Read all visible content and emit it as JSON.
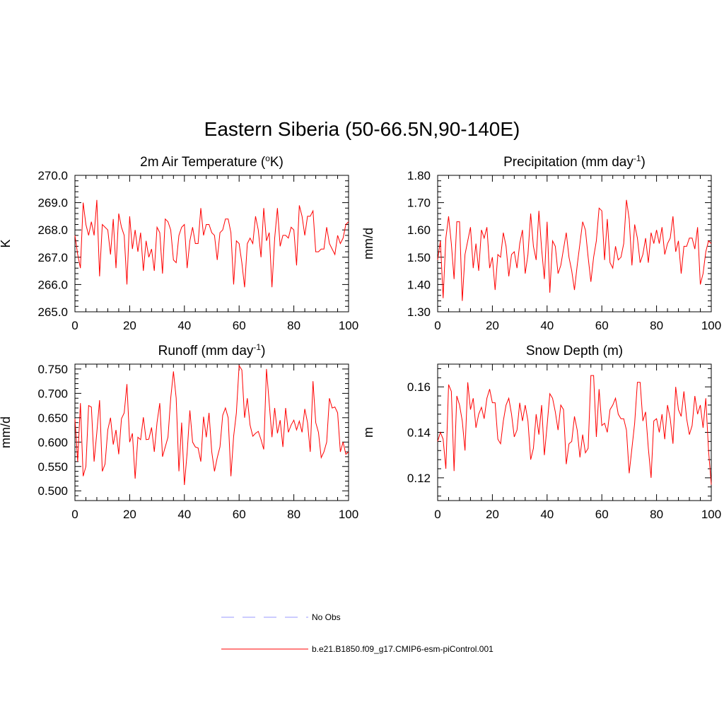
{
  "figure": {
    "title": "Eastern Siberia (50-66.5N,90-140E)"
  },
  "chart_data": [
    {
      "type": "line",
      "title": "2m Air Temperature (",
      "title_sup": "o",
      "title_after": "K)",
      "xlabel": "",
      "ylabel": "K",
      "xlim": [
        0,
        100
      ],
      "ylim": [
        265.0,
        270.0
      ],
      "xticks": [
        0,
        20,
        40,
        60,
        80,
        100
      ],
      "yticks": [
        "265.0",
        "266.0",
        "267.0",
        "268.0",
        "269.0",
        "270.0"
      ],
      "grid": false,
      "series": [
        {
          "color": "#ff0000",
          "x": [
            0,
            1,
            2,
            3,
            4,
            5,
            6,
            7,
            8,
            9,
            10,
            11,
            12,
            13,
            14,
            15,
            16,
            17,
            18,
            19,
            20,
            21,
            22,
            23,
            24,
            25,
            26,
            27,
            28,
            29,
            30,
            31,
            32,
            33,
            34,
            35,
            36,
            37,
            38,
            39,
            40,
            41,
            42,
            43,
            44,
            45,
            46,
            47,
            48,
            49,
            50,
            51,
            52,
            53,
            54,
            55,
            56,
            57,
            58,
            59,
            60,
            61,
            62,
            63,
            64,
            65,
            66,
            67,
            68,
            69,
            70,
            71,
            72,
            73,
            74,
            75,
            76,
            77,
            78,
            79,
            80,
            81,
            82,
            83,
            84,
            85,
            86,
            87,
            88,
            89,
            90,
            91,
            92,
            93,
            94,
            95,
            96,
            97,
            98,
            99,
            100
          ],
          "y": [
            267.8,
            267.1,
            266.6,
            269.0,
            268.2,
            267.8,
            268.3,
            267.8,
            269.1,
            266.3,
            268.2,
            268.1,
            268.0,
            267.1,
            268.4,
            266.6,
            268.6,
            268.1,
            267.8,
            266.0,
            268.5,
            267.3,
            268.0,
            267.2,
            267.9,
            266.5,
            267.6,
            267.0,
            267.3,
            266.5,
            268.1,
            267.9,
            266.4,
            268.4,
            268.3,
            268.0,
            266.9,
            266.8,
            267.8,
            268.1,
            268.2,
            266.6,
            267.6,
            268.1,
            267.5,
            267.5,
            268.8,
            267.8,
            268.2,
            268.2,
            267.9,
            267.8,
            266.9,
            267.9,
            268.0,
            268.4,
            268.4,
            267.9,
            266.0,
            267.6,
            267.5,
            266.8,
            265.9,
            267.5,
            267.7,
            267.5,
            268.5,
            268.0,
            267.0,
            268.8,
            267.6,
            267.9,
            265.9,
            267.7,
            268.8,
            267.4,
            267.8,
            267.8,
            267.7,
            268.1,
            268.0,
            266.7,
            268.9,
            268.5,
            267.8,
            268.5,
            268.5,
            268.7,
            267.2,
            267.2,
            267.3,
            267.3,
            268.1,
            267.5,
            267.3,
            267.1,
            267.8,
            267.5,
            267.7,
            268.2,
            268.3
          ]
        }
      ]
    },
    {
      "type": "line",
      "title": "Precipitation (mm day",
      "title_sup": "-1",
      "title_after": ")",
      "xlabel": "",
      "ylabel": "mm/d",
      "xlim": [
        0,
        100
      ],
      "ylim": [
        1.3,
        1.8
      ],
      "xticks": [
        0,
        20,
        40,
        60,
        80,
        100
      ],
      "yticks": [
        "1.30",
        "1.40",
        "1.50",
        "1.60",
        "1.70",
        "1.80"
      ],
      "grid": false,
      "series": [
        {
          "color": "#ff0000",
          "x": [
            0,
            1,
            2,
            3,
            4,
            5,
            6,
            7,
            8,
            9,
            10,
            11,
            12,
            13,
            14,
            15,
            16,
            17,
            18,
            19,
            20,
            21,
            22,
            23,
            24,
            25,
            26,
            27,
            28,
            29,
            30,
            31,
            32,
            33,
            34,
            35,
            36,
            37,
            38,
            39,
            40,
            41,
            42,
            43,
            44,
            45,
            46,
            47,
            48,
            49,
            50,
            51,
            52,
            53,
            54,
            55,
            56,
            57,
            58,
            59,
            60,
            61,
            62,
            63,
            64,
            65,
            66,
            67,
            68,
            69,
            70,
            71,
            72,
            73,
            74,
            75,
            76,
            77,
            78,
            79,
            80,
            81,
            82,
            83,
            84,
            85,
            86,
            87,
            88,
            89,
            90,
            91,
            92,
            93,
            94,
            95,
            96,
            97,
            98,
            99,
            100
          ],
          "y": [
            1.49,
            1.56,
            1.35,
            1.57,
            1.65,
            1.55,
            1.42,
            1.63,
            1.63,
            1.34,
            1.51,
            1.56,
            1.61,
            1.46,
            1.55,
            1.45,
            1.6,
            1.57,
            1.61,
            1.46,
            1.5,
            1.38,
            1.51,
            1.5,
            1.59,
            1.54,
            1.43,
            1.51,
            1.52,
            1.46,
            1.55,
            1.6,
            1.44,
            1.51,
            1.66,
            1.54,
            1.49,
            1.67,
            1.53,
            1.42,
            1.63,
            1.37,
            1.56,
            1.54,
            1.44,
            1.47,
            1.53,
            1.59,
            1.5,
            1.45,
            1.38,
            1.47,
            1.55,
            1.63,
            1.6,
            1.5,
            1.41,
            1.5,
            1.56,
            1.68,
            1.67,
            1.49,
            1.64,
            1.48,
            1.46,
            1.54,
            1.49,
            1.5,
            1.55,
            1.71,
            1.64,
            1.47,
            1.62,
            1.57,
            1.48,
            1.51,
            1.57,
            1.48,
            1.59,
            1.55,
            1.6,
            1.55,
            1.61,
            1.51,
            1.55,
            1.57,
            1.65,
            1.52,
            1.56,
            1.44,
            1.54,
            1.54,
            1.57,
            1.57,
            1.53,
            1.61,
            1.4,
            1.44,
            1.52,
            1.56,
            1.55
          ]
        }
      ]
    },
    {
      "type": "line",
      "title": "Runoff (mm day",
      "title_sup": "-1",
      "title_after": ")",
      "xlabel": "",
      "ylabel": "mm/d",
      "xlim": [
        0,
        100
      ],
      "ylim": [
        0.48,
        0.76
      ],
      "xticks": [
        0,
        20,
        40,
        60,
        80,
        100
      ],
      "yticks": [
        "0.500",
        "0.550",
        "0.600",
        "0.650",
        "0.700",
        "0.750"
      ],
      "grid": false,
      "series": [
        {
          "color": "#ff0000",
          "x": [
            0,
            1,
            2,
            3,
            4,
            5,
            6,
            7,
            8,
            9,
            10,
            11,
            12,
            13,
            14,
            15,
            16,
            17,
            18,
            19,
            20,
            21,
            22,
            23,
            24,
            25,
            26,
            27,
            28,
            29,
            30,
            31,
            32,
            33,
            34,
            35,
            36,
            37,
            38,
            39,
            40,
            41,
            42,
            43,
            44,
            45,
            46,
            47,
            48,
            49,
            50,
            51,
            52,
            53,
            54,
            55,
            56,
            57,
            58,
            59,
            60,
            61,
            62,
            63,
            64,
            65,
            66,
            67,
            68,
            69,
            70,
            71,
            72,
            73,
            74,
            75,
            76,
            77,
            78,
            79,
            80,
            81,
            82,
            83,
            84,
            85,
            86,
            87,
            88,
            89,
            90,
            91,
            92,
            93,
            94,
            95,
            96,
            97,
            98,
            99,
            100
          ],
          "y": [
            0.648,
            0.56,
            0.68,
            0.53,
            0.55,
            0.675,
            0.672,
            0.56,
            0.62,
            0.686,
            0.54,
            0.555,
            0.625,
            0.65,
            0.595,
            0.625,
            0.575,
            0.648,
            0.66,
            0.719,
            0.6,
            0.618,
            0.525,
            0.61,
            0.605,
            0.651,
            0.605,
            0.606,
            0.63,
            0.58,
            0.64,
            0.68,
            0.57,
            0.59,
            0.61,
            0.69,
            0.745,
            0.69,
            0.54,
            0.64,
            0.512,
            0.578,
            0.665,
            0.6,
            0.59,
            0.588,
            0.56,
            0.652,
            0.61,
            0.66,
            0.58,
            0.54,
            0.568,
            0.59,
            0.655,
            0.67,
            0.65,
            0.53,
            0.612,
            0.66,
            0.757,
            0.748,
            0.65,
            0.69,
            0.635,
            0.612,
            0.618,
            0.622,
            0.605,
            0.585,
            0.75,
            0.68,
            0.61,
            0.67,
            0.618,
            0.645,
            0.59,
            0.67,
            0.62,
            0.635,
            0.645,
            0.625,
            0.643,
            0.62,
            0.668,
            0.64,
            0.58,
            0.725,
            0.64,
            0.62,
            0.568,
            0.58,
            0.6,
            0.69,
            0.67,
            0.672,
            0.66,
            0.58,
            0.6,
            0.575,
            0.58
          ]
        }
      ]
    },
    {
      "type": "line",
      "title": "Snow Depth (m)",
      "title_sup": "",
      "title_after": "",
      "xlabel": "",
      "ylabel": "m",
      "xlim": [
        0,
        100
      ],
      "ylim": [
        0.11,
        0.17
      ],
      "xticks": [
        0,
        20,
        40,
        60,
        80,
        100
      ],
      "yticks": [
        "0.12",
        "0.14",
        "0.16"
      ],
      "grid": false,
      "series": [
        {
          "color": "#ff0000",
          "x": [
            0,
            1,
            2,
            3,
            4,
            5,
            6,
            7,
            8,
            9,
            10,
            11,
            12,
            13,
            14,
            15,
            16,
            17,
            18,
            19,
            20,
            21,
            22,
            23,
            24,
            25,
            26,
            27,
            28,
            29,
            30,
            31,
            32,
            33,
            34,
            35,
            36,
            37,
            38,
            39,
            40,
            41,
            42,
            43,
            44,
            45,
            46,
            47,
            48,
            49,
            50,
            51,
            52,
            53,
            54,
            55,
            56,
            57,
            58,
            59,
            60,
            61,
            62,
            63,
            64,
            65,
            66,
            67,
            68,
            69,
            70,
            71,
            72,
            73,
            74,
            75,
            76,
            77,
            78,
            79,
            80,
            81,
            82,
            83,
            84,
            85,
            86,
            87,
            88,
            89,
            90,
            91,
            92,
            93,
            94,
            95,
            96,
            97,
            98,
            99,
            100
          ],
          "y": [
            0.136,
            0.14,
            0.137,
            0.124,
            0.161,
            0.158,
            0.123,
            0.156,
            0.152,
            0.145,
            0.132,
            0.162,
            0.15,
            0.155,
            0.142,
            0.148,
            0.151,
            0.146,
            0.155,
            0.159,
            0.153,
            0.153,
            0.137,
            0.135,
            0.145,
            0.152,
            0.155,
            0.148,
            0.138,
            0.141,
            0.153,
            0.145,
            0.152,
            0.145,
            0.128,
            0.133,
            0.148,
            0.139,
            0.152,
            0.13,
            0.143,
            0.157,
            0.155,
            0.149,
            0.141,
            0.152,
            0.15,
            0.126,
            0.135,
            0.136,
            0.147,
            0.141,
            0.129,
            0.139,
            0.131,
            0.133,
            0.165,
            0.165,
            0.138,
            0.159,
            0.143,
            0.144,
            0.14,
            0.15,
            0.152,
            0.155,
            0.148,
            0.146,
            0.146,
            0.141,
            0.122,
            0.133,
            0.144,
            0.162,
            0.162,
            0.145,
            0.149,
            0.133,
            0.12,
            0.145,
            0.146,
            0.14,
            0.148,
            0.137,
            0.152,
            0.146,
            0.135,
            0.16,
            0.15,
            0.147,
            0.158,
            0.146,
            0.139,
            0.143,
            0.156,
            0.148,
            0.152,
            0.142,
            0.155,
            0.132,
            0.117
          ]
        }
      ]
    }
  ],
  "legend": {
    "placement": "bottom-center",
    "entries": [
      {
        "label": "No Obs",
        "color": "#9999ff",
        "dash": "dashed"
      },
      {
        "label": "b.e21.B1850.f09_g17.CMIP6-esm-piControl.001",
        "color": "#ff0000",
        "dash": "solid"
      }
    ]
  }
}
